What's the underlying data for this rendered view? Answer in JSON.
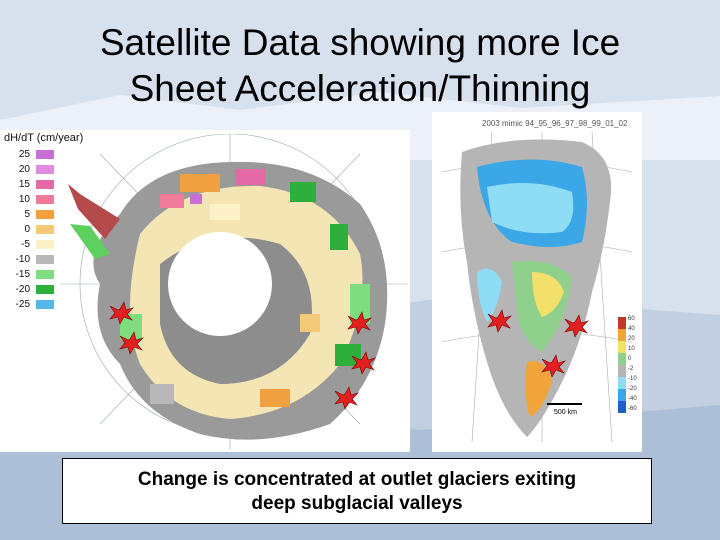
{
  "slide": {
    "title_line1": "Satellite Data showing more Ice",
    "title_line2": "Sheet Acceleration/Thinning",
    "caption_line1": "Change is concentrated at outlet glaciers exiting",
    "caption_line2": "deep subglacial valleys"
  },
  "antarctica_map": {
    "legend_title": "dH/dT (cm/year)",
    "legend_entries": [
      {
        "label": "25",
        "color": "#c86fd6"
      },
      {
        "label": "20",
        "color": "#e08ce0"
      },
      {
        "label": "15",
        "color": "#e46aa6"
      },
      {
        "label": "10",
        "color": "#f07a9a"
      },
      {
        "label": "5",
        "color": "#f0a040"
      },
      {
        "label": "0",
        "color": "#f5c97a"
      },
      {
        "label": "-5",
        "color": "#fbf0c8"
      },
      {
        "label": "-10",
        "color": "#b8b8b8"
      },
      {
        "label": "-15",
        "color": "#7fdc7f"
      },
      {
        "label": "-20",
        "color": "#2eae3a"
      },
      {
        "label": "-25",
        "color": "#56b8e8"
      }
    ]
  },
  "greenland_map": {
    "header": "2003 mimic 94_95_96_97_98_99_01_02",
    "scale_label": "500 km",
    "colorbar_labels": [
      "60",
      "40",
      "20",
      "10",
      "0",
      "-2",
      "-10",
      "-20",
      "-40",
      "-60"
    ],
    "colors": {
      "blue": "#3ba7e6",
      "lightblue": "#8fdcf5",
      "green": "#8fd18c",
      "yellow": "#f2e06a",
      "orange": "#f0a43a",
      "gray": "#b5b5b5"
    }
  }
}
